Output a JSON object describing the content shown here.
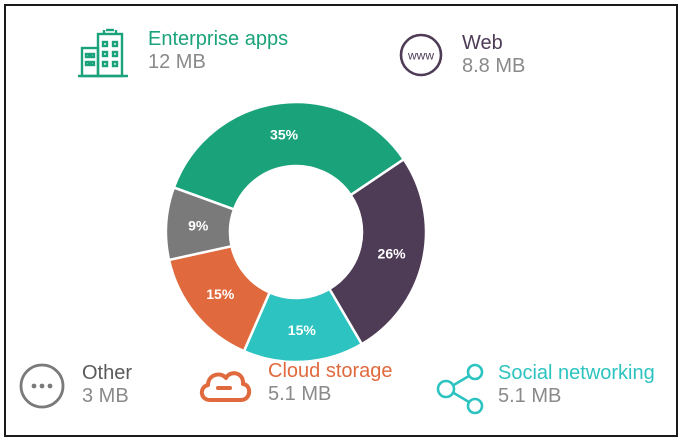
{
  "chart_data": {
    "type": "pie",
    "donut": true,
    "categories": [
      "Enterprise apps",
      "Web",
      "Social networking",
      "Cloud storage",
      "Other"
    ],
    "values": [
      35,
      26,
      15,
      15,
      9
    ],
    "value_labels": [
      "35%",
      "26%",
      "15%",
      "15%",
      "9%"
    ],
    "sizes": [
      "12 MB",
      "8.8 MB",
      "5.1 MB",
      "5.1 MB",
      "3 MB"
    ],
    "colors": [
      "#1aa37b",
      "#4e3b56",
      "#2cc3c0",
      "#e06a3e",
      "#7a7a7a"
    ],
    "legend": {
      "enterprise": {
        "name": "Enterprise apps",
        "size": "12 MB",
        "color": "#1aa37b",
        "icon": "building-icon"
      },
      "web": {
        "name": "Web",
        "size": "8.8 MB",
        "color": "#4e3b56",
        "icon": "www-icon",
        "icon_text": "www"
      },
      "other": {
        "name": "Other",
        "size": "3 MB",
        "color": "#5a5a5a",
        "icon": "ellipsis-icon"
      },
      "cloud": {
        "name": "Cloud storage",
        "size": "5.1 MB",
        "color": "#e06a3e",
        "icon": "cloud-icon"
      },
      "social": {
        "name": "Social networking",
        "size": "5.1 MB",
        "color": "#2cc3c0",
        "icon": "share-icon"
      }
    }
  }
}
